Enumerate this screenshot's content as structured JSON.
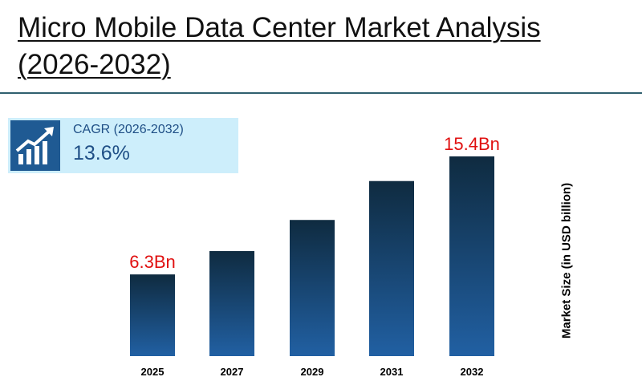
{
  "title": "Micro Mobile Data Center Market Analysis (2026-2032)",
  "cagr": {
    "label": "CAGR (2026-2032)",
    "value": "13.6%",
    "icon": "growth-chart-icon"
  },
  "colors": {
    "bar_top": "#0f2b40",
    "bar_bottom": "#2160a3",
    "label": "#e01010",
    "badge_bg": "#cdeefb"
  },
  "chart_data": {
    "type": "bar",
    "categories": [
      "2025",
      "2027",
      "2029",
      "2031",
      "2032"
    ],
    "values": [
      6.3,
      8.1,
      10.5,
      13.5,
      15.4
    ],
    "data_labels": [
      "6.3Bn",
      "",
      "",
      "",
      "15.4Bn"
    ],
    "ylabel": "Market Size (in USD billion)",
    "xlabel": "",
    "grid": false
  }
}
